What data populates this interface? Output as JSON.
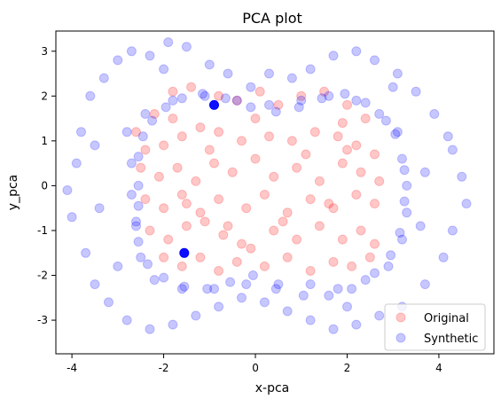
{
  "chart_data": {
    "type": "scatter",
    "title": "PCA plot",
    "xlabel": "x-pca",
    "ylabel": "y_pca",
    "xlim": [
      -4.35,
      5.2
    ],
    "ylim": [
      -3.75,
      3.45
    ],
    "xticks": [
      -4,
      -2,
      0,
      2,
      4
    ],
    "yticks": [
      -3,
      -2,
      -1,
      0,
      1,
      2,
      3
    ],
    "grid": false,
    "legend": "lower-right",
    "series": [
      {
        "name": "Original",
        "color": "#ff0000",
        "alpha": 0.22,
        "points": [
          [
            -2.6,
            1.2
          ],
          [
            -2.2,
            1.6
          ],
          [
            -1.8,
            2.1
          ],
          [
            -1.4,
            2.2
          ],
          [
            -0.8,
            2.0
          ],
          [
            -0.4,
            1.9
          ],
          [
            0.1,
            2.1
          ],
          [
            0.5,
            1.8
          ],
          [
            1.0,
            2.0
          ],
          [
            1.5,
            2.1
          ],
          [
            2.0,
            1.8
          ],
          [
            2.4,
            1.5
          ],
          [
            -2.4,
            0.8
          ],
          [
            -2.0,
            0.9
          ],
          [
            -1.6,
            1.1
          ],
          [
            -1.2,
            1.3
          ],
          [
            -0.8,
            1.2
          ],
          [
            -0.3,
            1.0
          ],
          [
            0.3,
            1.1
          ],
          [
            0.8,
            1.0
          ],
          [
            1.3,
            1.2
          ],
          [
            1.8,
            1.1
          ],
          [
            2.2,
            0.9
          ],
          [
            2.6,
            0.7
          ],
          [
            -2.5,
            0.4
          ],
          [
            -2.1,
            0.2
          ],
          [
            -1.7,
            0.4
          ],
          [
            -1.3,
            0.1
          ],
          [
            -0.9,
            0.5
          ],
          [
            -0.5,
            0.3
          ],
          [
            0.4,
            0.2
          ],
          [
            0.9,
            0.4
          ],
          [
            1.4,
            0.1
          ],
          [
            1.9,
            0.5
          ],
          [
            2.3,
            0.3
          ],
          [
            2.7,
            0.1
          ],
          [
            -2.4,
            -0.3
          ],
          [
            -2.0,
            -0.5
          ],
          [
            -1.6,
            -0.2
          ],
          [
            -1.2,
            -0.6
          ],
          [
            -0.8,
            -0.3
          ],
          [
            -0.2,
            -0.5
          ],
          [
            0.2,
            -0.2
          ],
          [
            0.7,
            -0.6
          ],
          [
            1.2,
            -0.3
          ],
          [
            1.7,
            -0.5
          ],
          [
            2.2,
            -0.2
          ],
          [
            2.6,
            -0.4
          ],
          [
            -2.3,
            -1.0
          ],
          [
            -1.9,
            -1.2
          ],
          [
            -1.5,
            -0.9
          ],
          [
            -1.1,
            -0.8
          ],
          [
            -0.7,
            -1.1
          ],
          [
            -0.3,
            -1.3
          ],
          [
            0.4,
            -1.0
          ],
          [
            0.9,
            -1.2
          ],
          [
            1.4,
            -0.9
          ],
          [
            1.9,
            -1.2
          ],
          [
            2.3,
            -1.0
          ],
          [
            2.6,
            -1.3
          ],
          [
            -2.0,
            -1.6
          ],
          [
            -1.6,
            -1.8
          ],
          [
            -1.2,
            -1.6
          ],
          [
            -0.8,
            -1.9
          ],
          [
            -0.4,
            -1.7
          ],
          [
            0.2,
            -1.8
          ],
          [
            0.7,
            -1.6
          ],
          [
            1.2,
            -1.9
          ],
          [
            1.7,
            -1.7
          ],
          [
            2.1,
            -1.8
          ],
          [
            2.5,
            -1.6
          ],
          [
            -1.5,
            -0.4
          ],
          [
            -1.0,
            0.8
          ],
          [
            -0.6,
            -0.9
          ],
          [
            0.0,
            0.6
          ],
          [
            0.6,
            -0.8
          ],
          [
            1.1,
            0.7
          ],
          [
            1.6,
            -0.4
          ],
          [
            2.0,
            0.8
          ],
          [
            -1.8,
            1.5
          ],
          [
            0.0,
            1.5
          ],
          [
            1.9,
            1.4
          ],
          [
            -0.1,
            -1.4
          ]
        ]
      },
      {
        "name": "Synthetic",
        "color": "#0000ff",
        "alpha": 0.22,
        "points": [
          [
            -3.9,
            0.5
          ],
          [
            -3.8,
            1.2
          ],
          [
            -3.6,
            2.0
          ],
          [
            -3.3,
            2.4
          ],
          [
            -3.0,
            2.8
          ],
          [
            -2.7,
            3.0
          ],
          [
            -2.3,
            2.9
          ],
          [
            -1.9,
            3.2
          ],
          [
            -1.5,
            3.1
          ],
          [
            -1.0,
            2.7
          ],
          [
            -0.6,
            2.5
          ],
          [
            -0.1,
            2.2
          ],
          [
            0.3,
            2.5
          ],
          [
            0.8,
            2.4
          ],
          [
            1.2,
            2.6
          ],
          [
            1.7,
            2.9
          ],
          [
            2.2,
            3.0
          ],
          [
            2.6,
            2.8
          ],
          [
            3.1,
            2.5
          ],
          [
            3.5,
            2.1
          ],
          [
            3.9,
            1.6
          ],
          [
            4.2,
            1.1
          ],
          [
            -4.0,
            -0.7
          ],
          [
            -3.7,
            -1.5
          ],
          [
            -3.5,
            -2.2
          ],
          [
            -3.2,
            -2.6
          ],
          [
            -2.8,
            -3.0
          ],
          [
            -2.3,
            -3.2
          ],
          [
            -1.8,
            -3.1
          ],
          [
            -1.3,
            -2.9
          ],
          [
            -0.8,
            -2.7
          ],
          [
            -0.3,
            -2.5
          ],
          [
            0.2,
            -2.6
          ],
          [
            0.7,
            -2.8
          ],
          [
            1.2,
            -3.0
          ],
          [
            1.7,
            -3.2
          ],
          [
            2.2,
            -3.1
          ],
          [
            2.7,
            -2.9
          ],
          [
            3.2,
            -2.7
          ],
          [
            3.7,
            -2.2
          ],
          [
            4.1,
            -1.6
          ],
          [
            4.3,
            -1.0
          ],
          [
            -2.8,
            1.2
          ],
          [
            -2.7,
            0.5
          ],
          [
            -2.7,
            -0.2
          ],
          [
            -2.6,
            -0.9
          ],
          [
            -2.5,
            -1.6
          ],
          [
            -2.2,
            -2.1
          ],
          [
            -1.6,
            -2.3
          ],
          [
            -0.9,
            -2.3
          ],
          [
            -0.2,
            -2.2
          ],
          [
            0.5,
            -2.2
          ],
          [
            1.2,
            -2.2
          ],
          [
            1.8,
            -2.3
          ],
          [
            2.4,
            -2.1
          ],
          [
            2.9,
            -1.8
          ],
          [
            3.2,
            -1.2
          ],
          [
            3.3,
            -0.6
          ],
          [
            3.3,
            0.0
          ],
          [
            3.2,
            0.6
          ],
          [
            3.1,
            1.2
          ],
          [
            2.7,
            1.6
          ],
          [
            2.2,
            1.9
          ],
          [
            1.6,
            2.0
          ],
          [
            1.0,
            1.9
          ],
          [
            0.3,
            1.8
          ],
          [
            -0.4,
            1.9
          ],
          [
            -1.1,
            2.0
          ],
          [
            -1.8,
            1.9
          ],
          [
            -2.4,
            1.6
          ],
          [
            4.5,
            0.2
          ],
          [
            4.6,
            -0.4
          ],
          [
            4.3,
            0.8
          ],
          [
            -4.1,
            -0.1
          ],
          [
            -3.5,
            0.9
          ],
          [
            -3.4,
            -0.5
          ],
          [
            3.7,
            0.3
          ],
          [
            3.6,
            -0.9
          ],
          [
            -3.0,
            -1.8
          ],
          [
            3.0,
            2.2
          ],
          [
            -2.0,
            2.6
          ],
          [
            2.0,
            -2.7
          ],
          [
            -2.55,
            0.0
          ],
          [
            -2.55,
            -0.45
          ],
          [
            -2.55,
            0.65
          ],
          [
            -2.45,
            1.1
          ],
          [
            -2.25,
            1.45
          ],
          [
            -1.95,
            1.75
          ],
          [
            -1.6,
            1.95
          ],
          [
            -1.15,
            2.05
          ],
          [
            -0.65,
            1.95
          ],
          [
            -0.1,
            1.75
          ],
          [
            0.45,
            1.65
          ],
          [
            0.95,
            1.75
          ],
          [
            1.45,
            1.95
          ],
          [
            1.95,
            2.05
          ],
          [
            2.4,
            1.85
          ],
          [
            2.85,
            1.45
          ],
          [
            3.05,
            1.15
          ],
          [
            3.25,
            0.35
          ],
          [
            3.25,
            -0.35
          ],
          [
            3.15,
            -1.05
          ],
          [
            2.95,
            -1.55
          ],
          [
            2.6,
            -1.95
          ],
          [
            2.1,
            -2.3
          ],
          [
            1.6,
            -2.45
          ],
          [
            1.05,
            -2.45
          ],
          [
            0.45,
            -2.3
          ],
          [
            -0.05,
            -2.0
          ],
          [
            -0.55,
            -2.15
          ],
          [
            -1.05,
            -2.3
          ],
          [
            -1.55,
            -2.25
          ],
          [
            -2.0,
            -2.05
          ],
          [
            -2.35,
            -1.75
          ],
          [
            -2.55,
            -1.25
          ],
          [
            -2.6,
            -0.8
          ]
        ]
      }
    ],
    "highlighted_points": [
      {
        "series": "Synthetic",
        "x": -0.9,
        "y": 1.8
      },
      {
        "series": "Synthetic",
        "x": -1.55,
        "y": -1.5
      }
    ]
  }
}
